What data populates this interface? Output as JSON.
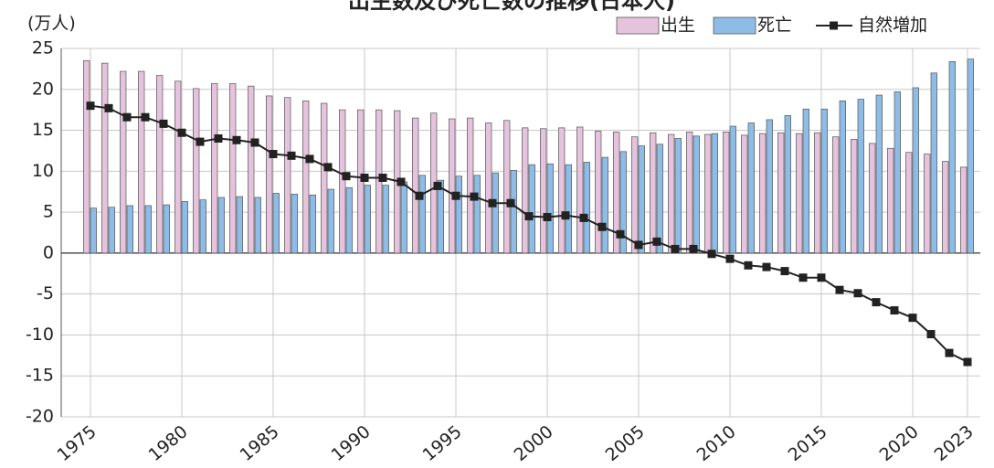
{
  "chart_data": {
    "type": "bar",
    "title": "出生数及び死亡数の推移(日本人)",
    "y_label": "(万人)",
    "x": [
      1975,
      1976,
      1977,
      1978,
      1979,
      1980,
      1981,
      1982,
      1983,
      1984,
      1985,
      1986,
      1987,
      1988,
      1989,
      1990,
      1991,
      1992,
      1993,
      1994,
      1995,
      1996,
      1997,
      1998,
      1999,
      2000,
      2001,
      2002,
      2003,
      2004,
      2005,
      2006,
      2007,
      2008,
      2009,
      2010,
      2011,
      2012,
      2013,
      2014,
      2015,
      2016,
      2017,
      2018,
      2019,
      2020,
      2021,
      2022,
      2023
    ],
    "series": [
      {
        "name": "出生",
        "type": "bar",
        "color": "#e6c3dc",
        "values": [
          23.5,
          23.2,
          22.2,
          22.2,
          21.7,
          21.0,
          20.1,
          20.7,
          20.7,
          20.4,
          19.2,
          19.0,
          18.6,
          18.3,
          17.5,
          17.5,
          17.5,
          17.4,
          16.5,
          17.1,
          16.4,
          16.5,
          15.9,
          16.2,
          15.3,
          15.2,
          15.3,
          15.4,
          14.9,
          14.8,
          14.2,
          14.7,
          14.5,
          14.8,
          14.5,
          14.8,
          14.4,
          14.6,
          14.7,
          14.6,
          14.7,
          14.2,
          13.9,
          13.4,
          12.8,
          12.3,
          12.1,
          11.2,
          10.5
        ]
      },
      {
        "name": "死亡",
        "type": "bar",
        "color": "#8dbde6",
        "values": [
          5.5,
          5.6,
          5.8,
          5.8,
          5.9,
          6.3,
          6.5,
          6.8,
          6.9,
          6.8,
          7.3,
          7.2,
          7.1,
          7.8,
          8.0,
          8.3,
          8.3,
          8.7,
          9.5,
          8.9,
          9.4,
          9.5,
          9.8,
          10.1,
          10.8,
          10.9,
          10.8,
          11.1,
          11.7,
          12.4,
          13.1,
          13.3,
          14.0,
          14.3,
          14.6,
          15.5,
          15.9,
          16.3,
          16.8,
          17.6,
          17.6,
          18.6,
          18.8,
          19.3,
          19.7,
          20.2,
          22.0,
          23.4,
          23.7
        ]
      },
      {
        "name": "自然増加",
        "type": "line",
        "color": "#222222",
        "values": [
          18.0,
          17.7,
          16.6,
          16.6,
          15.8,
          14.7,
          13.6,
          14.0,
          13.8,
          13.5,
          12.1,
          11.9,
          11.5,
          10.5,
          9.4,
          9.2,
          9.2,
          8.7,
          7.0,
          8.2,
          7.0,
          6.9,
          6.1,
          6.1,
          4.5,
          4.4,
          4.6,
          4.3,
          3.2,
          2.3,
          1.0,
          1.4,
          0.5,
          0.5,
          -0.1,
          -0.7,
          -1.5,
          -1.7,
          -2.2,
          -3.0,
          -3.0,
          -4.5,
          -4.9,
          -6.0,
          -7.0,
          -7.9,
          -9.9,
          -12.2,
          -13.3
        ]
      }
    ],
    "xlim": [
      1973.4,
      2023.7
    ],
    "xticks": [
      1975,
      1980,
      1985,
      1990,
      1995,
      2000,
      2005,
      2010,
      2015,
      2020,
      2023
    ],
    "ylim": [
      -20,
      25
    ],
    "yticks": [
      -20,
      -15,
      -10,
      -5,
      0,
      5,
      10,
      15,
      20,
      25
    ],
    "grid": true,
    "legend": "top-right"
  }
}
